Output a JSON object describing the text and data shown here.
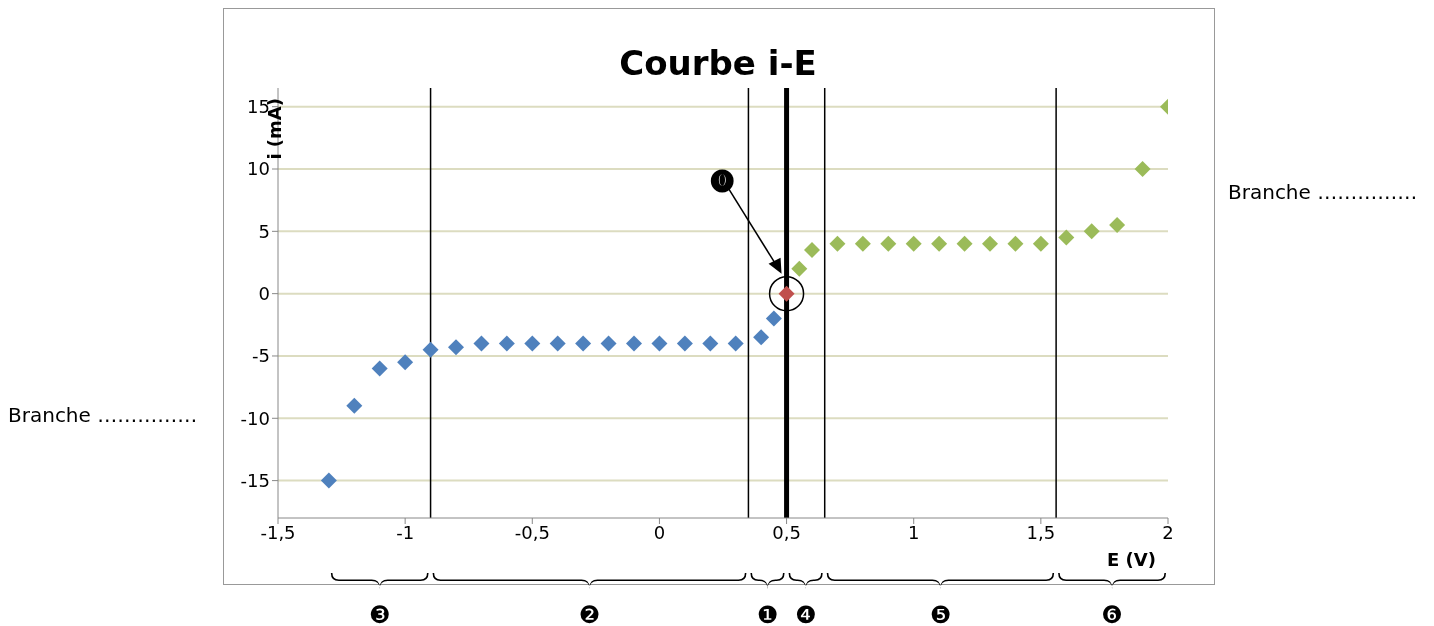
{
  "chart_data": {
    "type": "scatter",
    "title": "Courbe i-E",
    "xlabel": "E (V)",
    "ylabel": "i (mA)",
    "series": [
      {
        "color": "#4f81bd",
        "x": [
          -1.3,
          -1.2,
          -1.1,
          -1,
          -0.9,
          -0.8,
          -0.7,
          -0.6,
          -0.5,
          -0.4,
          -0.3,
          -0.2,
          -0.1,
          0,
          0.1,
          0.2,
          0.3,
          0.4,
          0.45
        ],
        "values": [
          -15,
          -9,
          -6,
          -5.5,
          -4.5,
          -4.3,
          -4,
          -4,
          -4,
          -4,
          -4,
          -4,
          -4,
          -4,
          -4,
          -4,
          -4,
          -3.5,
          -2
        ]
      },
      {
        "color": "#c0504d",
        "x": [
          0.5
        ],
        "values": [
          0
        ]
      },
      {
        "color": "#9bbb59",
        "x": [
          0.55,
          0.6,
          0.7,
          0.8,
          0.9,
          1,
          1.1,
          1.2,
          1.3,
          1.4,
          1.5,
          1.6,
          1.7,
          1.8,
          1.9,
          2
        ],
        "values": [
          2,
          3.5,
          4,
          4,
          4,
          4,
          4,
          4,
          4,
          4,
          4,
          4.5,
          5,
          5.5,
          10,
          15
        ]
      }
    ],
    "xlim": [
      -1.5,
      2
    ],
    "xticks": [
      {
        "value": -1.5,
        "label": "-1,5"
      },
      -1,
      {
        "value": -0.5,
        "label": "-0,5"
      },
      0,
      {
        "value": 0.5,
        "label": "0,5"
      },
      1,
      {
        "value": 1.5,
        "label": "1,5"
      },
      2
    ],
    "ylim": [
      -18,
      16.5
    ],
    "yticks": [
      -15,
      -10,
      -5,
      0,
      5,
      10,
      15
    ],
    "grid": "y",
    "legend": false,
    "marker": "diamond",
    "ref_lines": [
      {
        "axis": "x",
        "value": -0.9,
        "color": "#000000"
      },
      {
        "axis": "x",
        "value": 0.35,
        "color": "#000000"
      },
      {
        "axis": "x",
        "value": 0.5,
        "color": "#000000"
      },
      {
        "axis": "x",
        "value": 0.65,
        "color": "#000000"
      },
      {
        "axis": "x",
        "value": 1.56,
        "color": "#000000"
      }
    ],
    "annotations": [
      "Branche ……………",
      "Branche ……………",
      "⓿",
      "❸",
      "❷",
      "❶",
      "❹",
      "❺",
      "❻"
    ]
  }
}
